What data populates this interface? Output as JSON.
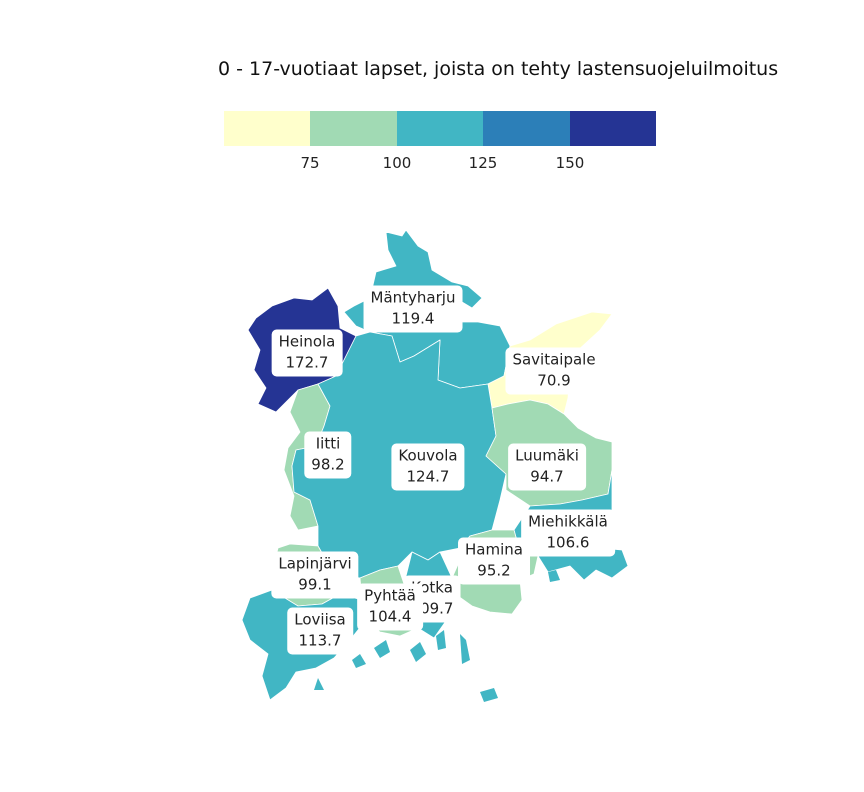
{
  "title": "0 - 17-vuotiaat lapset, joista on tehty lastensuojeluilmoitus",
  "legend": {
    "colors": [
      "#ffffcc",
      "#a1dab4",
      "#41b6c4",
      "#2c7fb8",
      "#253494"
    ],
    "ticks": [
      "75",
      "100",
      "125",
      "150"
    ]
  },
  "municipalities": [
    {
      "name": "Mäntyharju",
      "value": "119.4"
    },
    {
      "name": "Heinola",
      "value": "172.7"
    },
    {
      "name": "Savitaipale",
      "value": "70.9"
    },
    {
      "name": "Iitti",
      "value": "98.2"
    },
    {
      "name": "Kouvola",
      "value": "124.7"
    },
    {
      "name": "Luumäki",
      "value": "94.7"
    },
    {
      "name": "Miehikkälä",
      "value": "106.6"
    },
    {
      "name": "Hamina",
      "value": "95.2"
    },
    {
      "name": "Lapinjärvi",
      "value": "99.1"
    },
    {
      "name": "Kotka",
      "value": "109.7"
    },
    {
      "name": "Pyhtää",
      "value": "104.4"
    },
    {
      "name": "Loviisa",
      "value": "113.7"
    }
  ]
}
